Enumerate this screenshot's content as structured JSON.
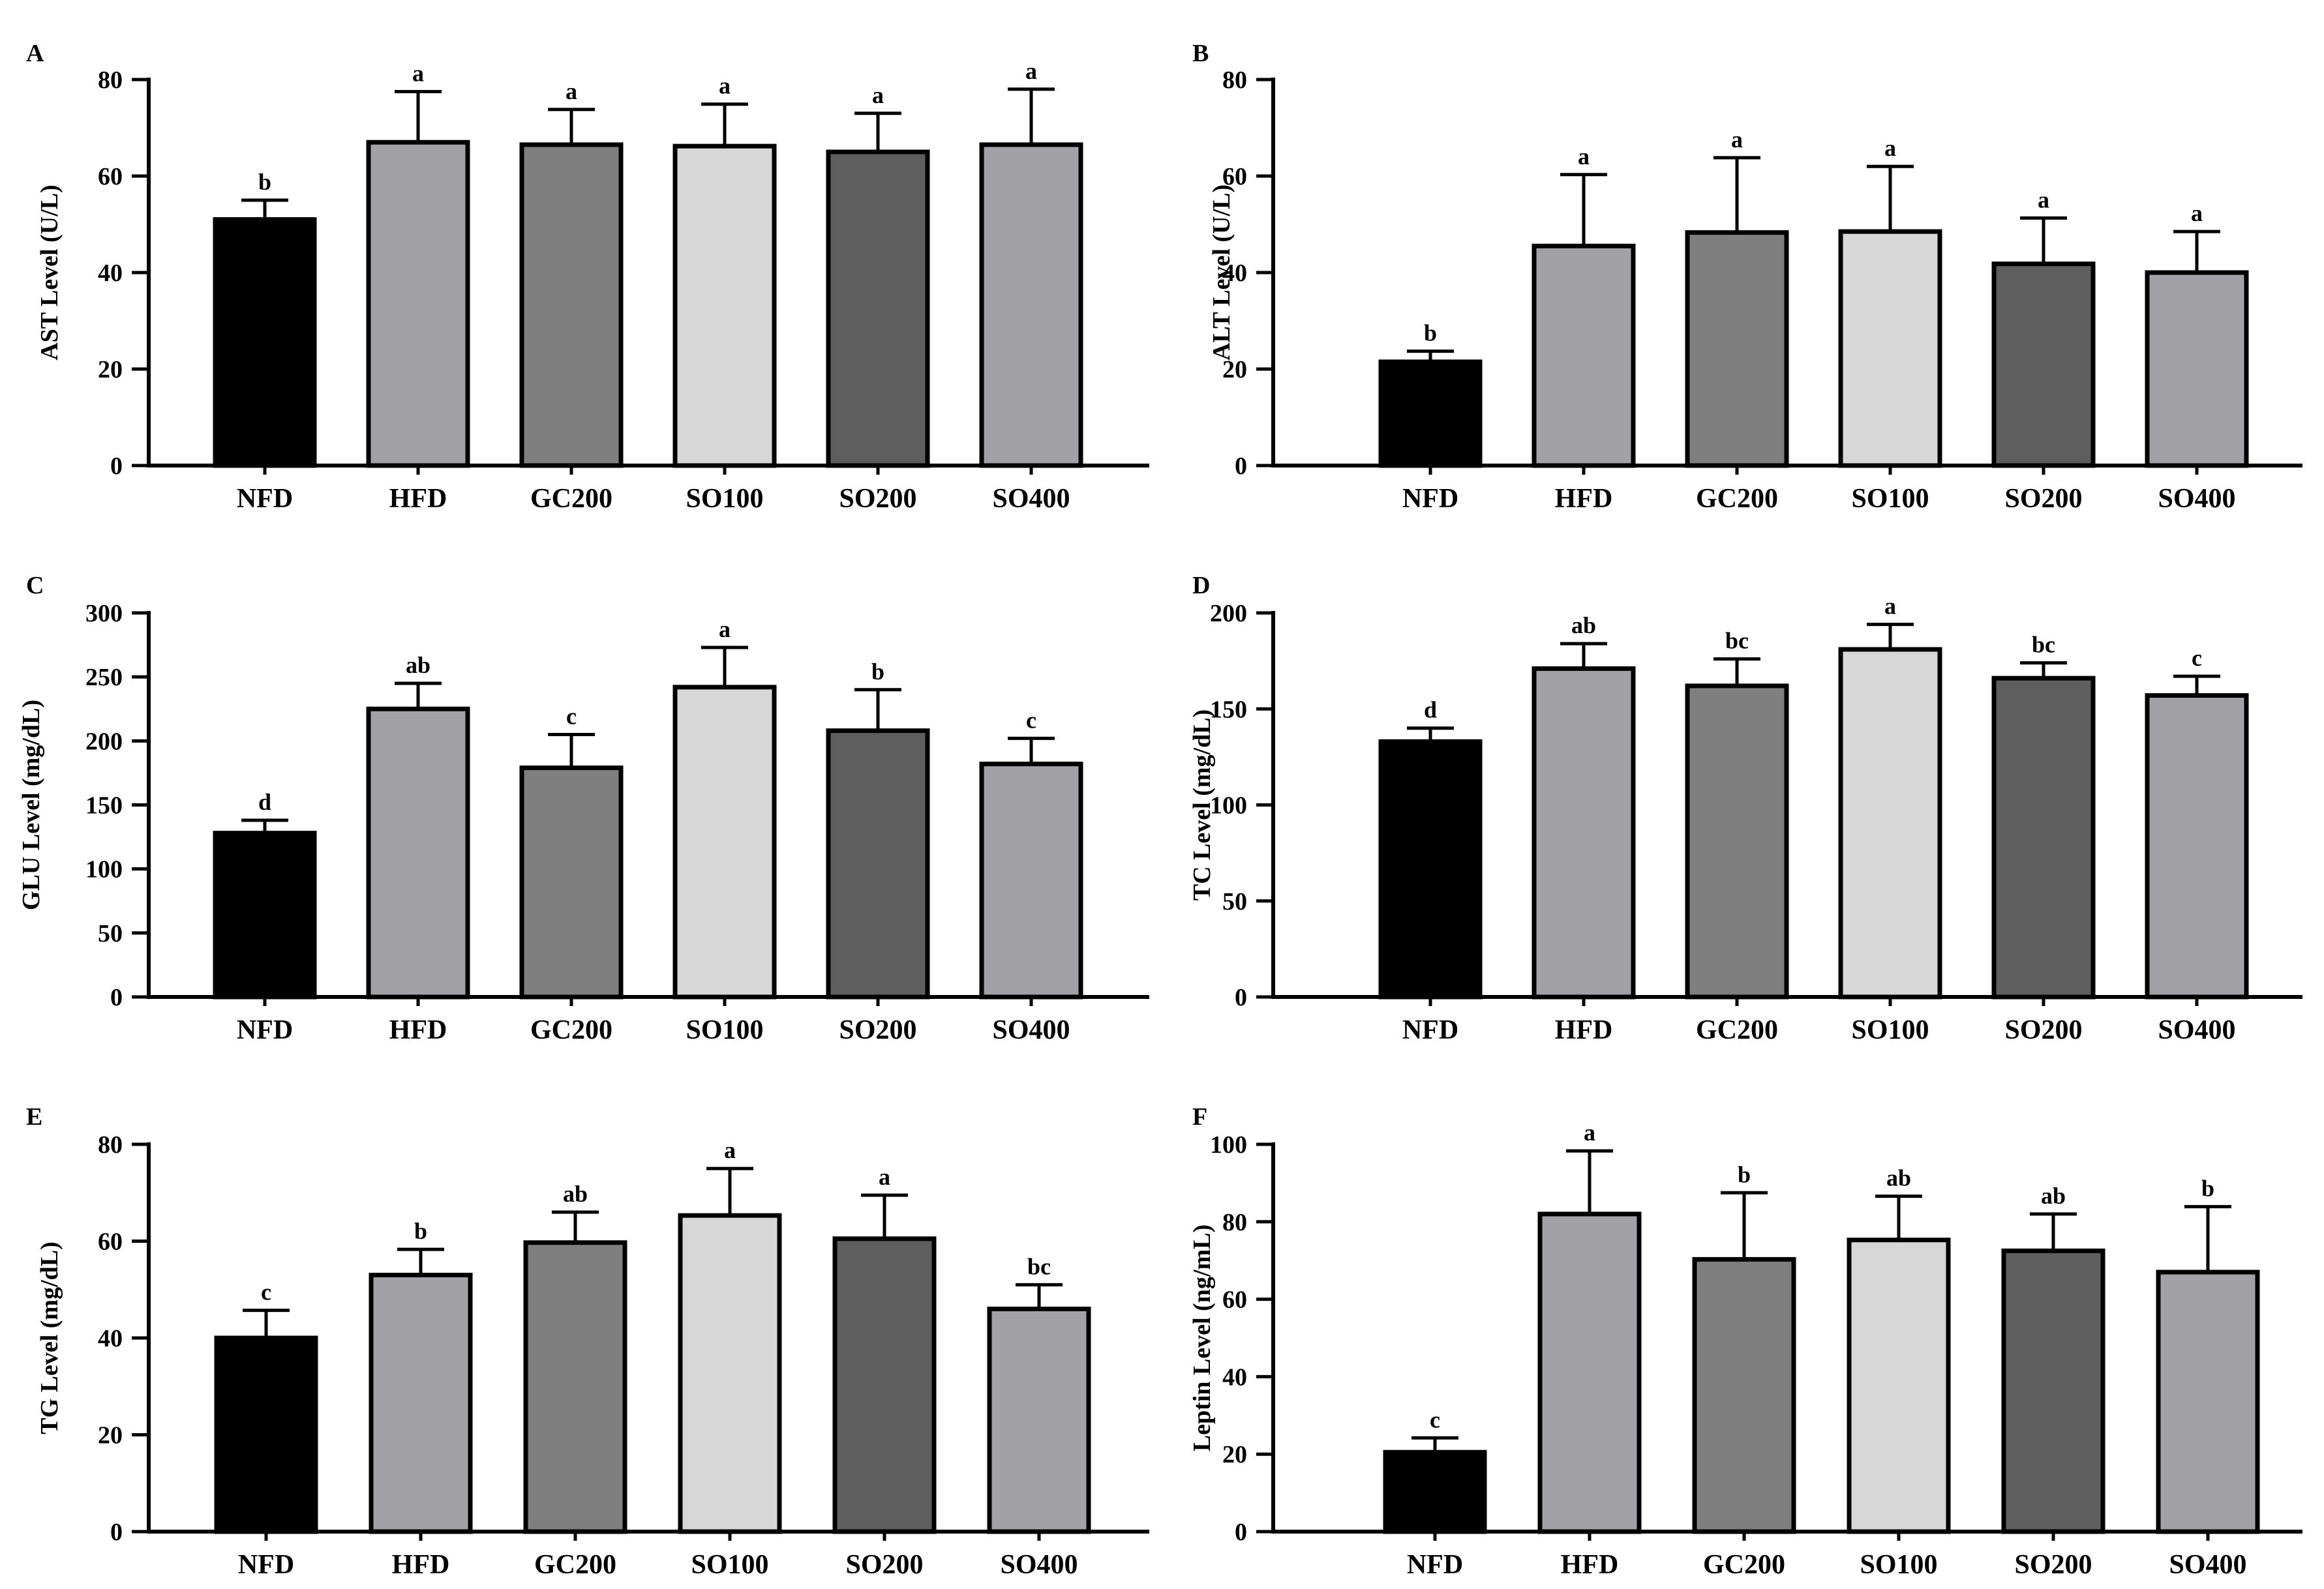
{
  "figure": {
    "colors": {
      "NFD": "#000000",
      "HFD": "#a1a1a6",
      "GC200": "#7f7f7f",
      "SO100": "#d7d7d7",
      "SO200": "#5e5e5e",
      "SO400": "#a1a1a6"
    }
  },
  "chart_data": [
    {
      "panel": "A",
      "type": "bar",
      "categories": [
        "NFD",
        "HFD",
        "GC200",
        "SO100",
        "SO200",
        "SO400"
      ],
      "values": [
        51,
        67,
        66.5,
        66.2,
        65,
        66.5
      ],
      "errors": [
        4,
        10.5,
        7.3,
        8.7,
        8,
        11.5
      ],
      "significance": [
        "b",
        "a",
        "a",
        "a",
        "a",
        "a"
      ],
      "ylabel": "AST Level (U/L)",
      "ylim": [
        0,
        80
      ],
      "yticks": [
        0,
        20,
        40,
        60,
        80
      ]
    },
    {
      "panel": "B",
      "type": "bar",
      "categories": [
        "NFD",
        "HFD",
        "GC200",
        "SO100",
        "SO200",
        "SO400"
      ],
      "values": [
        21.5,
        45.5,
        48.3,
        48.5,
        41.8,
        40
      ],
      "errors": [
        2.2,
        14.8,
        15.5,
        13.5,
        9.5,
        8.5
      ],
      "significance": [
        "b",
        "a",
        "a",
        "a",
        "a",
        "a"
      ],
      "ylabel": "ALT Level (U/L)",
      "ylim": [
        0,
        80
      ],
      "yticks": [
        0,
        20,
        40,
        60,
        80
      ]
    },
    {
      "panel": "C",
      "type": "bar",
      "categories": [
        "NFD",
        "HFD",
        "GC200",
        "SO100",
        "SO200",
        "SO400"
      ],
      "values": [
        128,
        225,
        179,
        242,
        208,
        182
      ],
      "errors": [
        10,
        20,
        26,
        31,
        32,
        20
      ],
      "significance": [
        "d",
        "ab",
        "c",
        "a",
        "b",
        "c"
      ],
      "ylabel": "GLU Level (mg/dL)",
      "ylim": [
        0,
        300
      ],
      "yticks": [
        0,
        50,
        100,
        150,
        200,
        250,
        300
      ]
    },
    {
      "panel": "D",
      "type": "bar",
      "categories": [
        "NFD",
        "HFD",
        "GC200",
        "SO100",
        "SO200",
        "SO400"
      ],
      "values": [
        133,
        171,
        162,
        181,
        166,
        157
      ],
      "errors": [
        7,
        13,
        14,
        13,
        8,
        10
      ],
      "significance": [
        "d",
        "ab",
        "bc",
        "a",
        "bc",
        "c"
      ],
      "ylabel": "TC Level (mg/dL)",
      "ylim": [
        0,
        200
      ],
      "yticks": [
        0,
        50,
        100,
        150,
        200
      ]
    },
    {
      "panel": "E",
      "type": "bar",
      "categories": [
        "NFD",
        "HFD",
        "GC200",
        "SO100",
        "SO200",
        "SO400"
      ],
      "values": [
        40,
        53,
        59.7,
        65.3,
        60.5,
        46
      ],
      "errors": [
        5.7,
        5.3,
        6.3,
        9.7,
        9,
        5
      ],
      "significance": [
        "c",
        "b",
        "ab",
        "a",
        "a",
        "bc"
      ],
      "ylabel": "TG Level (mg/dL)",
      "ylim": [
        0,
        80
      ],
      "yticks": [
        0,
        20,
        40,
        60,
        80
      ]
    },
    {
      "panel": "F",
      "type": "bar",
      "categories": [
        "NFD",
        "HFD",
        "GC200",
        "SO100",
        "SO200",
        "SO400"
      ],
      "values": [
        20.5,
        82,
        70.3,
        75.3,
        72.5,
        67
      ],
      "errors": [
        3.7,
        16.3,
        17.2,
        11.3,
        9.5,
        16.9
      ],
      "significance": [
        "c",
        "a",
        "b",
        "ab",
        "ab",
        "b"
      ],
      "ylabel": "Leptin Level (ng/mL)",
      "ylim": [
        0,
        100
      ],
      "yticks": [
        0,
        20,
        40,
        60,
        80,
        100
      ]
    }
  ]
}
